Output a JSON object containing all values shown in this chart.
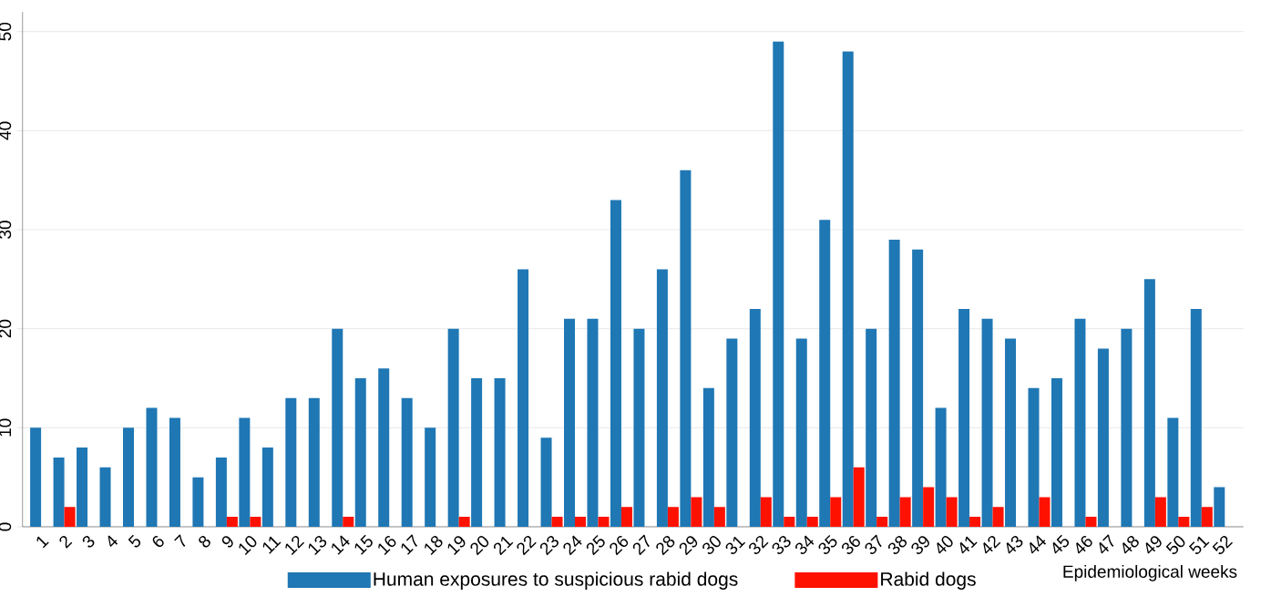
{
  "chart_data": {
    "type": "bar",
    "xlabel": "Epidemiological weeks",
    "categories": [
      "1",
      "2",
      "3",
      "4",
      "5",
      "6",
      "7",
      "8",
      "9",
      "10",
      "11",
      "12",
      "13",
      "14",
      "15",
      "16",
      "17",
      "18",
      "19",
      "20",
      "21",
      "22",
      "23",
      "24",
      "25",
      "26",
      "27",
      "28",
      "29",
      "30",
      "31",
      "32",
      "33",
      "34",
      "35",
      "36",
      "37",
      "38",
      "39",
      "40",
      "41",
      "42",
      "43",
      "44",
      "45",
      "46",
      "47",
      "48",
      "49",
      "50",
      "51",
      "52"
    ],
    "series": [
      {
        "name": "Human exposures to suspicious rabid dogs",
        "color": "#1f77b4",
        "values": [
          10,
          7,
          8,
          6,
          10,
          12,
          11,
          5,
          7,
          11,
          8,
          13,
          13,
          20,
          15,
          16,
          13,
          10,
          20,
          15,
          15,
          26,
          9,
          21,
          21,
          33,
          20,
          26,
          36,
          14,
          19,
          22,
          49,
          19,
          31,
          48,
          20,
          29,
          28,
          12,
          22,
          21,
          19,
          14,
          15,
          21,
          18,
          20,
          25,
          11,
          22,
          4
        ]
      },
      {
        "name": "Rabid dogs",
        "color": "#ff1100",
        "values": [
          0,
          2,
          0,
          0,
          0,
          0,
          0,
          0,
          1,
          1,
          0,
          0,
          0,
          1,
          0,
          0,
          0,
          0,
          1,
          0,
          0,
          0,
          1,
          1,
          1,
          2,
          0,
          2,
          3,
          2,
          0,
          3,
          1,
          1,
          3,
          6,
          1,
          3,
          4,
          3,
          1,
          2,
          0,
          3,
          0,
          1,
          0,
          0,
          3,
          1,
          2,
          0
        ]
      }
    ],
    "ylim": [
      0,
      52
    ],
    "yticks": [
      0,
      10,
      20,
      30,
      40,
      50
    ],
    "grid": "y",
    "legend": "bottom"
  }
}
